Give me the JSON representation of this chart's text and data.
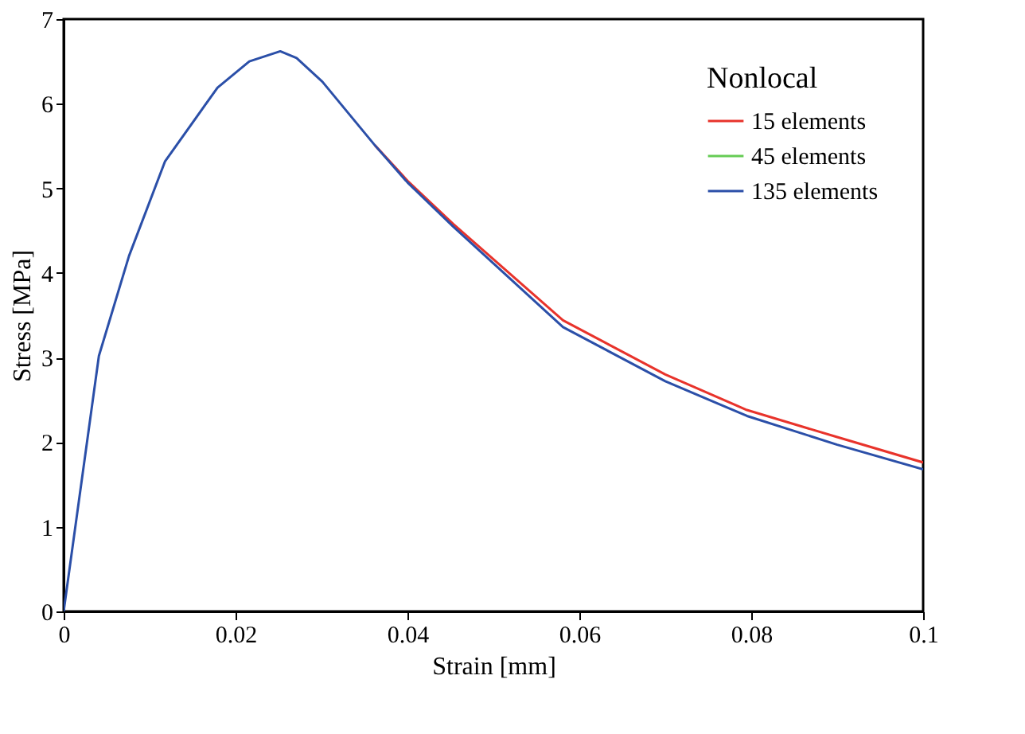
{
  "chart_data": {
    "type": "line",
    "xlabel": "Strain [mm]",
    "ylabel": "Stress [MPa]",
    "legend_title": "Nonlocal",
    "x": [
      0,
      0.0041,
      0.0076,
      0.0118,
      0.0179,
      0.0216,
      0.0252,
      0.0271,
      0.0301,
      0.0362,
      0.04,
      0.0453,
      0.0581,
      0.07,
      0.0795,
      0.09,
      0.1
    ],
    "series": [
      {
        "name": "15 elements",
        "color": "#e8332b",
        "values": [
          null,
          null,
          null,
          null,
          null,
          null,
          null,
          null,
          null,
          5.51,
          5.09,
          4.58,
          3.44,
          2.8,
          2.38,
          2.06,
          1.76
        ]
      },
      {
        "name": "45 elements",
        "color": "#66cc55",
        "values": [
          null,
          null,
          null,
          null,
          null,
          null,
          null,
          null,
          null,
          null,
          null,
          null,
          null,
          null,
          null,
          null,
          null
        ]
      },
      {
        "name": "135 elements",
        "color": "#2b4fa8",
        "values": [
          0,
          3.02,
          4.2,
          5.32,
          6.19,
          6.5,
          6.62,
          6.54,
          6.26,
          5.51,
          5.07,
          4.55,
          3.36,
          2.72,
          2.31,
          1.97,
          1.68
        ]
      }
    ],
    "xlim": [
      0,
      0.1
    ],
    "xticks": [
      0,
      0.02,
      0.04,
      0.06,
      0.08,
      0.1
    ],
    "ylim": [
      0,
      7
    ],
    "yticks": [
      0,
      1,
      2,
      3,
      4,
      5,
      6,
      7
    ],
    "grid": false,
    "legend": "top right",
    "marker": "none",
    "line_style": "solid"
  }
}
